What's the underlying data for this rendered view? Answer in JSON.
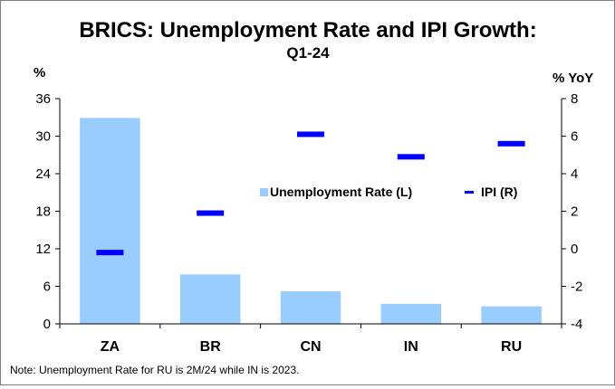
{
  "chart_data": {
    "type": "bar",
    "title": "BRICS: Unemployment Rate and IPI Growth:",
    "subtitle": "Q1-24",
    "ylabel_left": "%",
    "ylabel_right": "% YoY",
    "categories": [
      "ZA",
      "BR",
      "CN",
      "IN",
      "RU"
    ],
    "ylim_left": [
      0,
      36
    ],
    "yticks_left": [
      0,
      6,
      12,
      18,
      24,
      30,
      36
    ],
    "ylim_right": [
      -4,
      8
    ],
    "yticks_right": [
      -4,
      -2,
      0,
      2,
      4,
      6,
      8
    ],
    "series": [
      {
        "name": "Unemployment Rate (L)",
        "type": "bar",
        "axis": "left",
        "color": "#99ccff",
        "values": [
          32.9,
          7.9,
          5.2,
          3.2,
          2.8
        ]
      },
      {
        "name": "IPI (R)",
        "type": "marker",
        "axis": "right",
        "color": "#0000ff",
        "values": [
          -0.2,
          1.9,
          6.1,
          4.9,
          5.6
        ]
      }
    ],
    "legend": "center-right",
    "grid": false,
    "note": "Note: Unemployment Rate for RU is 2M/24 while IN is 2023."
  }
}
